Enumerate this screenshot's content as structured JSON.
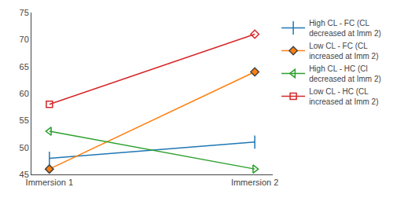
{
  "chart_data": {
    "type": "line",
    "categories": [
      "Immersion 1",
      "Immersion 2"
    ],
    "series": [
      {
        "name": "High CL - FC (CL\ndecreased at Imm 2)",
        "values": [
          48,
          51
        ],
        "marker": "tbar"
      },
      {
        "name": "Low CL - FC (CL\nincreased at Imm 2)",
        "values": [
          46,
          64
        ],
        "marker": "filled_diamond"
      },
      {
        "name": "High CL - HC (Cl\ndecreased at Imm 2)",
        "values": [
          53,
          46
        ],
        "marker": "open_arrow"
      },
      {
        "name": "Low CL - HC (CL\nincreased at Imm 2)",
        "values": [
          58,
          71
        ],
        "marker": "open_square_diamond"
      }
    ],
    "ylim": [
      45,
      75
    ],
    "yticks": [
      45,
      50,
      55,
      60,
      65,
      70,
      75
    ],
    "grid": false,
    "legend": "right"
  }
}
